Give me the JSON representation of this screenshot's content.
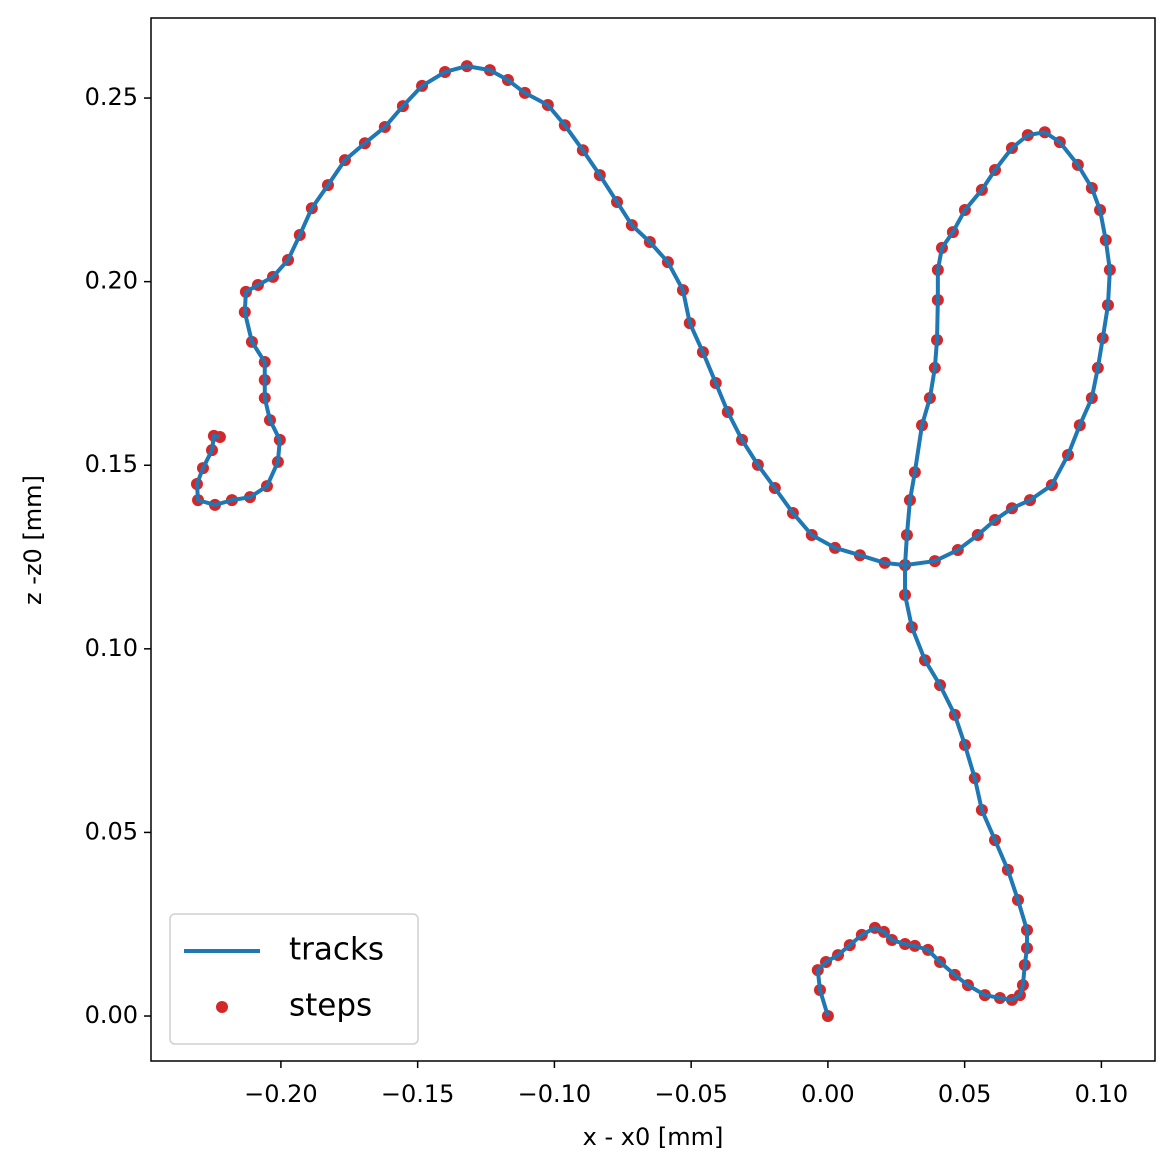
{
  "chart_data": {
    "type": "line-scatter",
    "x_label": "x - x0 [mm]",
    "y_label": "z -z0 [mm]",
    "x": [
      0,
      -0.0029,
      -0.0037,
      -0.0007,
      0.0037,
      0.008,
      0.0124,
      0.0172,
      0.0205,
      0.0234,
      0.0282,
      0.0318,
      0.0366,
      0.041,
      0.0464,
      0.0512,
      0.0574,
      0.0629,
      0.0673,
      0.0702,
      0.0713,
      0.072,
      0.0728,
      0.0728,
      0.0695,
      0.0658,
      0.0611,
      0.0563,
      0.0537,
      0.0501,
      0.0464,
      0.041,
      0.0355,
      0.0307,
      0.0282,
      0.0282,
      0.0289,
      0.03,
      0.0318,
      0.0344,
      0.0373,
      0.0391,
      0.0399,
      0.0402,
      0.0402,
      0.0417,
      0.0457,
      0.0501,
      0.0563,
      0.0611,
      0.0673,
      0.0731,
      0.0793,
      0.0848,
      0.0914,
      0.0965,
      0.0995,
      0.1016,
      0.1031,
      0.1024,
      0.1005,
      0.0987,
      0.0965,
      0.0921,
      0.0878,
      0.0819,
      0.0739,
      0.0673,
      0.0611,
      0.0548,
      0.0475,
      0.0391,
      0.0282,
      0.0208,
      0.0117,
      0.0026,
      -0.0059,
      -0.0128,
      -0.0194,
      -0.0256,
      -0.0314,
      -0.0366,
      -0.041,
      -0.0457,
      -0.0505,
      -0.053,
      -0.0585,
      -0.0651,
      -0.0717,
      -0.0771,
      -0.0834,
      -0.0896,
      -0.0962,
      -0.1024,
      -0.1108,
      -0.117,
      -0.1236,
      -0.132,
      -0.14,
      -0.1484,
      -0.1554,
      -0.162,
      -0.1693,
      -0.1766,
      -0.1828,
      -0.1887,
      -0.1931,
      -0.1974,
      -0.2029,
      -0.2084,
      -0.2128,
      -0.2132,
      -0.2106,
      -0.2059,
      -0.2059,
      -0.2059,
      -0.204,
      -0.2004,
      -0.2011,
      -0.2051,
      -0.2113,
      -0.2179,
      -0.2241,
      -0.2303,
      -0.2307,
      -0.2285,
      -0.2252,
      -0.2245,
      -0.2223
    ],
    "series": [
      {
        "name": "tracks",
        "kind": "line",
        "color": "#1f77b4",
        "values": [
          0,
          0.0071,
          0.0125,
          0.0147,
          0.0166,
          0.0193,
          0.0221,
          0.024,
          0.0229,
          0.0207,
          0.0196,
          0.0191,
          0.018,
          0.0147,
          0.0112,
          0.0084,
          0.0057,
          0.0049,
          0.0044,
          0.0057,
          0.0084,
          0.0139,
          0.0185,
          0.0234,
          0.0316,
          0.0398,
          0.0479,
          0.0561,
          0.0648,
          0.0738,
          0.082,
          0.0901,
          0.0969,
          0.1059,
          0.1147,
          0.1228,
          0.131,
          0.1405,
          0.1481,
          0.1609,
          0.1683,
          0.1765,
          0.1841,
          0.195,
          0.2032,
          0.2092,
          0.2135,
          0.2195,
          0.225,
          0.2304,
          0.2364,
          0.2399,
          0.2407,
          0.238,
          0.2318,
          0.2255,
          0.2195,
          0.2113,
          0.2032,
          0.1936,
          0.1846,
          0.1765,
          0.1683,
          0.1609,
          0.1528,
          0.1446,
          0.1405,
          0.1383,
          0.1351,
          0.131,
          0.1269,
          0.1239,
          0.1228,
          0.1234,
          0.1255,
          0.1275,
          0.131,
          0.137,
          0.1438,
          0.1501,
          0.1569,
          0.1645,
          0.1724,
          0.1808,
          0.1887,
          0.1977,
          0.2053,
          0.2108,
          0.2154,
          0.2217,
          0.229,
          0.2358,
          0.2426,
          0.2481,
          0.2514,
          0.2549,
          0.2576,
          0.2587,
          0.2571,
          0.2533,
          0.2478,
          0.2421,
          0.2377,
          0.2331,
          0.2263,
          0.22,
          0.2127,
          0.2059,
          0.2013,
          0.1991,
          0.1972,
          0.1917,
          0.1836,
          0.1781,
          0.1732,
          0.1683,
          0.1623,
          0.1569,
          0.1509,
          0.1443,
          0.1413,
          0.1405,
          0.1392,
          0.1405,
          0.1449,
          0.1492,
          0.1541,
          0.158,
          0.1577
        ]
      },
      {
        "name": "steps",
        "kind": "scatter",
        "color": "#d62728",
        "values": [
          0,
          0.0071,
          0.0125,
          0.0147,
          0.0166,
          0.0193,
          0.0221,
          0.024,
          0.0229,
          0.0207,
          0.0196,
          0.0191,
          0.018,
          0.0147,
          0.0112,
          0.0084,
          0.0057,
          0.0049,
          0.0044,
          0.0057,
          0.0084,
          0.0139,
          0.0185,
          0.0234,
          0.0316,
          0.0398,
          0.0479,
          0.0561,
          0.0648,
          0.0738,
          0.082,
          0.0901,
          0.0969,
          0.1059,
          0.1147,
          0.1228,
          0.131,
          0.1405,
          0.1481,
          0.1609,
          0.1683,
          0.1765,
          0.1841,
          0.195,
          0.2032,
          0.2092,
          0.2135,
          0.2195,
          0.225,
          0.2304,
          0.2364,
          0.2399,
          0.2407,
          0.238,
          0.2318,
          0.2255,
          0.2195,
          0.2113,
          0.2032,
          0.1936,
          0.1846,
          0.1765,
          0.1683,
          0.1609,
          0.1528,
          0.1446,
          0.1405,
          0.1383,
          0.1351,
          0.131,
          0.1269,
          0.1239,
          0.1228,
          0.1234,
          0.1255,
          0.1275,
          0.131,
          0.137,
          0.1438,
          0.1501,
          0.1569,
          0.1645,
          0.1724,
          0.1808,
          0.1887,
          0.1977,
          0.2053,
          0.2108,
          0.2154,
          0.2217,
          0.229,
          0.2358,
          0.2426,
          0.2481,
          0.2514,
          0.2549,
          0.2576,
          0.2587,
          0.2571,
          0.2533,
          0.2478,
          0.2421,
          0.2377,
          0.2331,
          0.2263,
          0.22,
          0.2127,
          0.2059,
          0.2013,
          0.1991,
          0.1972,
          0.1917,
          0.1836,
          0.1781,
          0.1732,
          0.1683,
          0.1623,
          0.1569,
          0.1509,
          0.1443,
          0.1413,
          0.1405,
          0.1392,
          0.1405,
          0.1449,
          0.1492,
          0.1541,
          0.158,
          0.1577
        ]
      }
    ],
    "xlim": [
      -0.2475,
      0.1196
    ],
    "ylim": [
      -0.01225,
      0.2718
    ],
    "xticks": [
      {
        "value": -0.2,
        "label": "−0.20"
      },
      {
        "value": -0.15,
        "label": "−0.15"
      },
      {
        "value": -0.1,
        "label": "−0.10"
      },
      {
        "value": -0.05,
        "label": "−0.05"
      },
      {
        "value": 0,
        "label": "0.00"
      },
      {
        "value": 0.05,
        "label": "0.05"
      },
      {
        "value": 0.1,
        "label": "0.10"
      }
    ],
    "yticks": [
      {
        "value": 0,
        "label": "0.00"
      },
      {
        "value": 0.05,
        "label": "0.05"
      },
      {
        "value": 0.1,
        "label": "0.10"
      },
      {
        "value": 0.15,
        "label": "0.15"
      },
      {
        "value": 0.2,
        "label": "0.20"
      },
      {
        "value": 0.25,
        "label": "0.25"
      }
    ],
    "grid": false,
    "legend": "lower left"
  }
}
